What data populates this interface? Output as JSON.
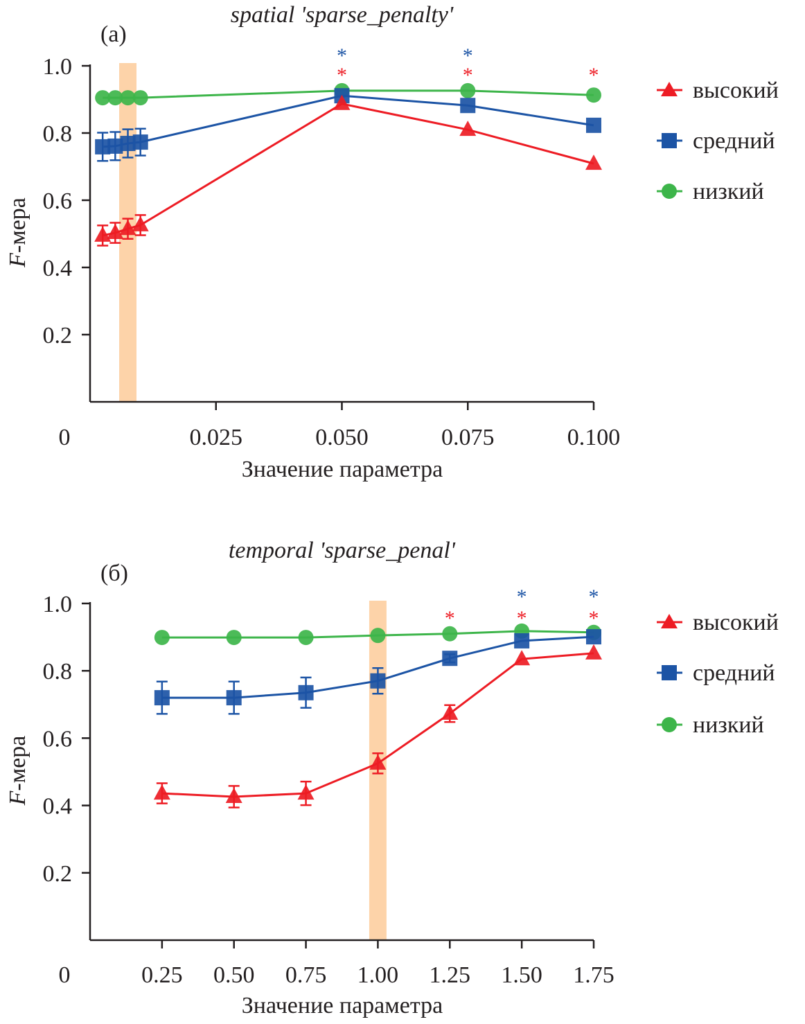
{
  "colors": {
    "high": "#ed1c24",
    "medium": "#1c54a5",
    "low": "#3db54a",
    "highlight": "#fdd3a9",
    "axis": "#231f20"
  },
  "legend": [
    "высокий",
    "средний",
    "низкий"
  ],
  "chart_data": [
    {
      "type": "line",
      "panel_label": "(a)",
      "title": "spatial 'sparse_penalty'",
      "xlabel": "Значение параметра",
      "ylabel_italic": "F",
      "ylabel_rest": "-мера",
      "xlim": [
        0,
        0.1
      ],
      "ylim": [
        0,
        1.0
      ],
      "xticks": [
        0,
        0.025,
        0.05,
        0.075,
        0.1
      ],
      "xtick_labels": [
        "0",
        "0.025",
        "0.050",
        "0.075",
        "0.100"
      ],
      "yticks": [
        0.2,
        0.4,
        0.6,
        0.8,
        1.0
      ],
      "ytick_labels": [
        "0.2",
        "0.4",
        "0.6",
        "0.8",
        "1.0"
      ],
      "highlight_x": 0.0075,
      "x": [
        0.0025,
        0.005,
        0.0075,
        0.01,
        0.05,
        0.075,
        0.1
      ],
      "series": [
        {
          "name": "высокий",
          "marker": "triangle",
          "values": [
            0.495,
            0.503,
            0.515,
            0.526,
            0.887,
            0.81,
            0.709
          ],
          "errors": [
            0.03,
            0.03,
            0.03,
            0.03,
            0,
            0,
            0
          ]
        },
        {
          "name": "средний",
          "marker": "square",
          "values": [
            0.759,
            0.761,
            0.769,
            0.773,
            0.911,
            0.882,
            0.823
          ],
          "errors": [
            0.042,
            0.042,
            0.042,
            0.04,
            0,
            0,
            0
          ]
        },
        {
          "name": "низкий",
          "marker": "circle",
          "values": [
            0.905,
            0.905,
            0.905,
            0.905,
            0.926,
            0.926,
            0.913
          ],
          "errors": [
            0,
            0,
            0,
            0,
            0,
            0,
            0
          ]
        }
      ],
      "significance": {
        "высокий": [
          0.05,
          0.075,
          0.1
        ],
        "средний": [
          0.05,
          0.075
        ]
      },
      "grid": false,
      "legend_position": "right"
    },
    {
      "type": "line",
      "panel_label": "(б)",
      "title": "temporal 'sparse_penal'",
      "xlabel": "Значение параметра",
      "ylabel_italic": "F",
      "ylabel_rest": "-мера",
      "xlim": [
        0,
        1.75
      ],
      "ylim": [
        0,
        1.0
      ],
      "xticks": [
        0,
        0.25,
        0.5,
        0.75,
        1.0,
        1.25,
        1.5,
        1.75
      ],
      "xtick_labels": [
        "0",
        "0.25",
        "0.50",
        "0.75",
        "1.00",
        "1.25",
        "1.50",
        "1.75"
      ],
      "yticks": [
        0.2,
        0.4,
        0.6,
        0.8,
        1.0
      ],
      "ytick_labels": [
        "0.2",
        "0.4",
        "0.6",
        "0.8",
        "1.0"
      ],
      "highlight_x": 1.0,
      "x": [
        0.25,
        0.5,
        0.75,
        1.0,
        1.25,
        1.5,
        1.75
      ],
      "series": [
        {
          "name": "высокий",
          "marker": "triangle",
          "values": [
            0.436,
            0.426,
            0.436,
            0.525,
            0.673,
            0.835,
            0.852
          ],
          "errors": [
            0.03,
            0.032,
            0.035,
            0.03,
            0.025,
            0,
            0
          ]
        },
        {
          "name": "средний",
          "marker": "square",
          "values": [
            0.72,
            0.72,
            0.735,
            0.77,
            0.837,
            0.889,
            0.901
          ],
          "errors": [
            0.048,
            0.048,
            0.045,
            0.038,
            0.012,
            0,
            0
          ]
        },
        {
          "name": "низкий",
          "marker": "circle",
          "values": [
            0.899,
            0.899,
            0.899,
            0.905,
            0.91,
            0.918,
            0.914
          ],
          "errors": [
            0,
            0,
            0,
            0,
            0,
            0,
            0
          ]
        }
      ],
      "significance": {
        "высокий": [
          1.25,
          1.5,
          1.75
        ],
        "средний": [
          1.5,
          1.75
        ]
      },
      "grid": false,
      "legend_position": "right"
    }
  ]
}
